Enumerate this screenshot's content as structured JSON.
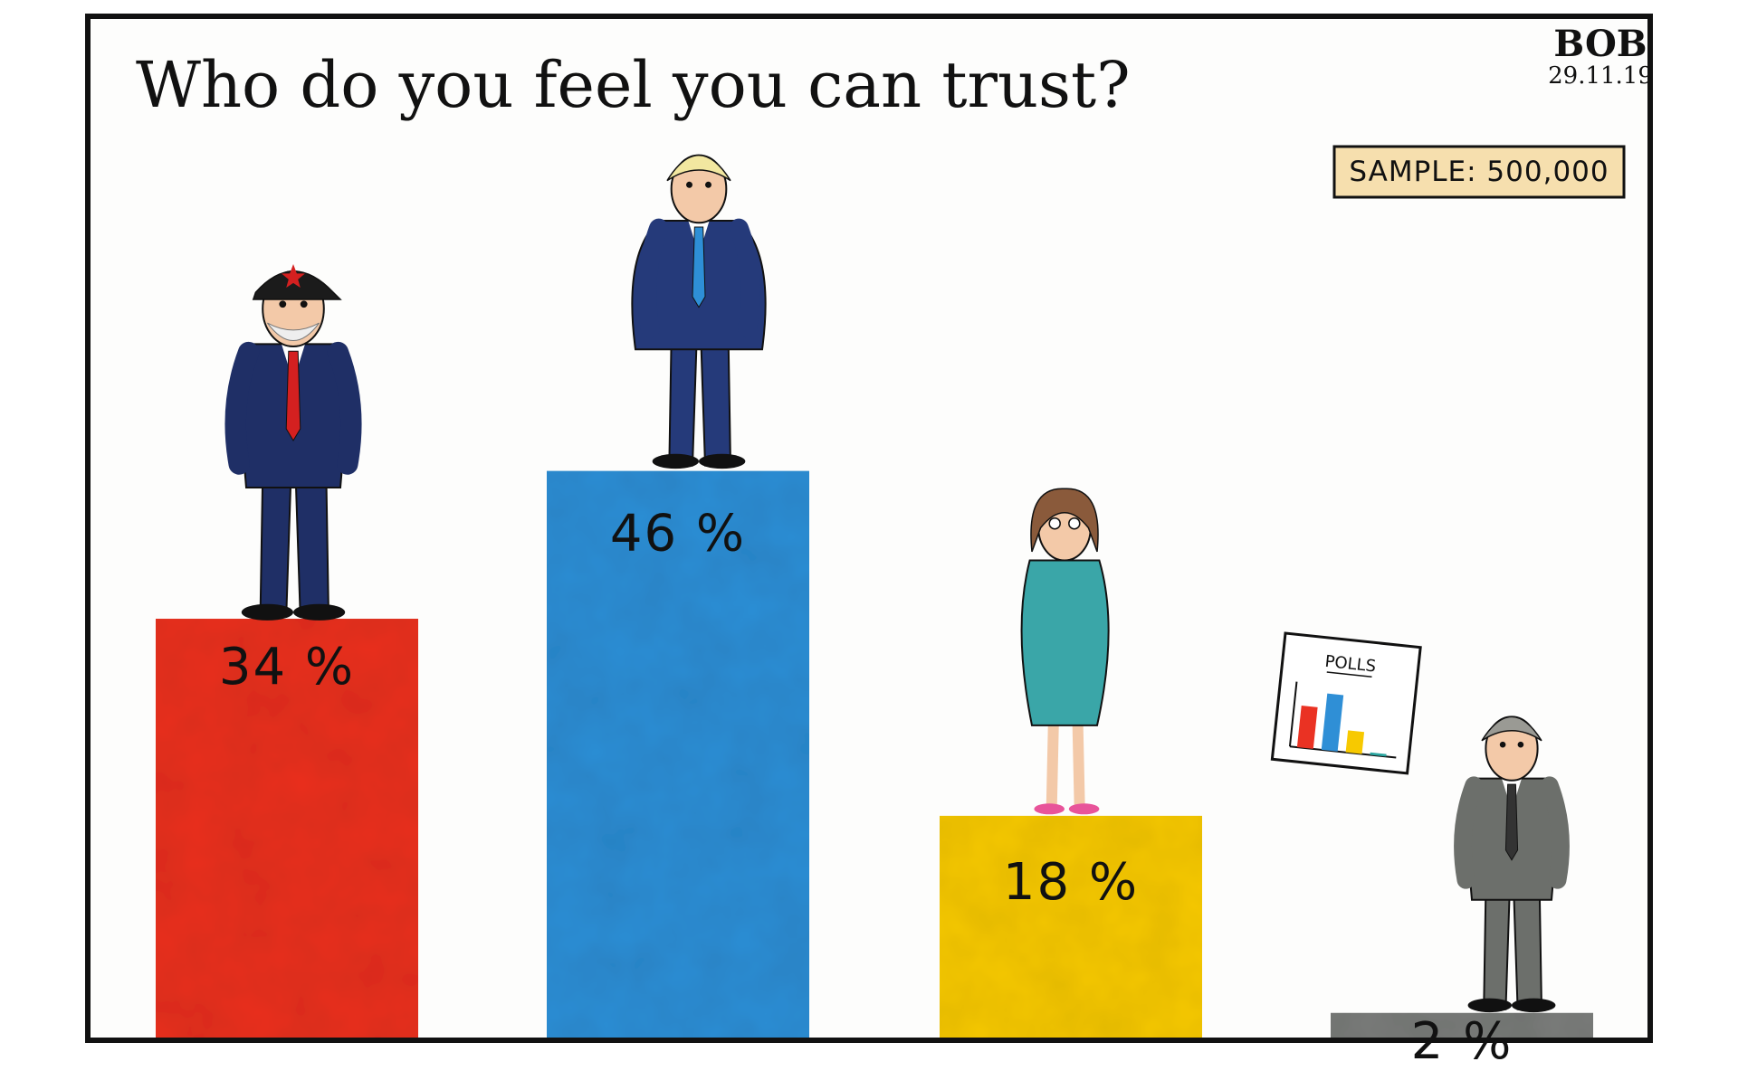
{
  "title": "Who do you feel you can trust?",
  "signature": {
    "name": "BOB",
    "date": "29.11.19"
  },
  "sample_badge": "SAMPLE: 500,000",
  "polls_sign": "POLLS",
  "colors": {
    "red": "#ea3223",
    "blue": "#2f8fd6",
    "yellow": "#f7c900",
    "grey": "#7a7d7a",
    "badge": "#f6dfae",
    "frame": "#111111"
  },
  "chart_data": {
    "type": "bar",
    "title": "Who do you feel you can trust?",
    "xlabel": "",
    "ylabel": "",
    "categories": [
      "",
      "",
      "",
      ""
    ],
    "values": [
      34,
      46,
      18,
      2
    ],
    "labels": [
      "34 %",
      "46 %",
      "18 %",
      "2 %"
    ],
    "colors": [
      "#ea3223",
      "#2f8fd6",
      "#f7c900",
      "#7a7d7a"
    ],
    "ylim": [
      0,
      60
    ],
    "grid": false,
    "legend": "none",
    "annotation": "SAMPLE: 500,000",
    "inset": {
      "label": "POLLS",
      "values": [
        34,
        46,
        18,
        2
      ],
      "colors": [
        "#ea3223",
        "#2f8fd6",
        "#f7c900",
        "#2aa6a0"
      ]
    }
  }
}
